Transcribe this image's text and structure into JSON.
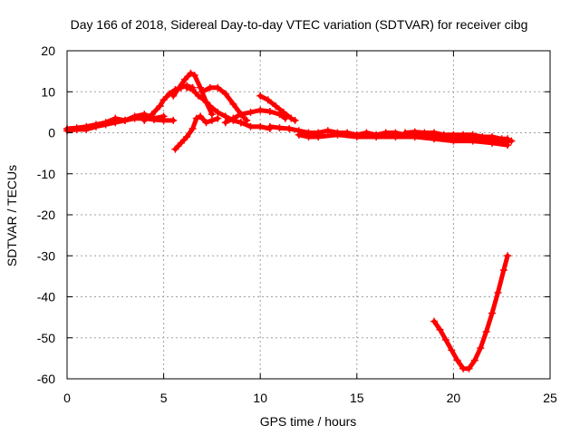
{
  "chart_data": {
    "type": "scatter",
    "title": "Day 166 of 2018, Sidereal Day-to-day VTEC variation (SDTVAR) for receiver cibg",
    "xlabel": "GPS time / hours",
    "ylabel": "SDTVAR / TECUs",
    "xlim": [
      0,
      25
    ],
    "ylim": [
      -60,
      20
    ],
    "xticks": [
      0,
      5,
      10,
      15,
      20,
      25
    ],
    "yticks": [
      -60,
      -50,
      -40,
      -30,
      -20,
      -10,
      0,
      10,
      20
    ],
    "xtick_labels": [
      "0",
      "5",
      "10",
      "15",
      "20",
      "25"
    ],
    "ytick_labels": [
      "-60",
      "-50",
      "-40",
      "-30",
      "-20",
      "-10",
      "0",
      "10",
      "20"
    ],
    "grid": true,
    "marker_color": "#ff0000",
    "series": [
      {
        "name": "low band",
        "points": [
          [
            0.0,
            0.5
          ],
          [
            0.5,
            0.8
          ],
          [
            1.0,
            0.8
          ],
          [
            1.5,
            1.5
          ],
          [
            2.0,
            2.0
          ],
          [
            2.5,
            2.5
          ],
          [
            3.0,
            3.0
          ],
          [
            3.5,
            3.5
          ],
          [
            4.0,
            3.5
          ],
          [
            4.5,
            3.2
          ],
          [
            5.0,
            3.0
          ],
          [
            5.5,
            3.0
          ]
        ]
      },
      {
        "name": "mid band",
        "points": [
          [
            0.0,
            1.0
          ],
          [
            0.5,
            1.2
          ],
          [
            1.0,
            1.5
          ],
          [
            1.5,
            2.0
          ],
          [
            2.0,
            2.5
          ],
          [
            2.5,
            3.5
          ],
          [
            3.0,
            3.0
          ],
          [
            3.5,
            4.0
          ],
          [
            4.0,
            4.5
          ],
          [
            4.5,
            3.5
          ],
          [
            5.0,
            4.0
          ]
        ]
      },
      {
        "name": "rise A",
        "points": [
          [
            4.0,
            3.0
          ],
          [
            4.4,
            4.5
          ],
          [
            4.8,
            6.5
          ],
          [
            5.0,
            8.0
          ],
          [
            5.3,
            9.5
          ],
          [
            5.6,
            10.5
          ],
          [
            5.9,
            11.0
          ],
          [
            6.2,
            11.5
          ],
          [
            6.5,
            11.0
          ]
        ]
      },
      {
        "name": "rise B",
        "points": [
          [
            5.5,
            9.0
          ],
          [
            5.8,
            11.0
          ],
          [
            6.1,
            13.0
          ],
          [
            6.4,
            14.5
          ],
          [
            6.6,
            14.0
          ],
          [
            6.9,
            11.0
          ],
          [
            7.2,
            7.5
          ],
          [
            7.5,
            4.5
          ]
        ]
      },
      {
        "name": "mid peak",
        "points": [
          [
            6.2,
            11.0
          ],
          [
            6.5,
            10.5
          ],
          [
            6.8,
            9.0
          ],
          [
            7.1,
            8.0
          ],
          [
            7.4,
            6.5
          ],
          [
            7.8,
            5.0
          ],
          [
            8.2,
            4.0
          ],
          [
            8.6,
            3.0
          ],
          [
            9.0,
            2.5
          ]
        ]
      },
      {
        "name": "hump",
        "points": [
          [
            7.0,
            10.0
          ],
          [
            7.4,
            11.0
          ],
          [
            7.8,
            11.0
          ],
          [
            8.2,
            9.5
          ],
          [
            8.6,
            7.0
          ],
          [
            9.0,
            4.5
          ],
          [
            9.3,
            3.0
          ]
        ]
      },
      {
        "name": "dip",
        "points": [
          [
            5.6,
            -4.0
          ],
          [
            5.9,
            -2.5
          ],
          [
            6.2,
            -1.0
          ],
          [
            6.5,
            1.0
          ],
          [
            6.7,
            3.5
          ],
          [
            6.9,
            4.0
          ],
          [
            7.2,
            2.5
          ],
          [
            7.5,
            3.0
          ],
          [
            7.8,
            3.5
          ]
        ]
      },
      {
        "name": "bump",
        "points": [
          [
            8.2,
            2.5
          ],
          [
            8.6,
            3.5
          ],
          [
            9.0,
            4.5
          ],
          [
            9.5,
            5.0
          ],
          [
            10.0,
            5.5
          ],
          [
            10.5,
            5.2
          ],
          [
            11.0,
            4.5
          ],
          [
            11.3,
            3.5
          ]
        ]
      },
      {
        "name": "descent",
        "points": [
          [
            10.0,
            9.0
          ],
          [
            10.4,
            8.0
          ],
          [
            10.8,
            6.5
          ],
          [
            11.2,
            5.0
          ],
          [
            11.6,
            3.5
          ],
          [
            11.8,
            3.0
          ]
        ]
      },
      {
        "name": "short tail",
        "points": [
          [
            9.0,
            2.5
          ],
          [
            9.5,
            1.5
          ],
          [
            10.0,
            1.5
          ],
          [
            10.5,
            1.0
          ]
        ]
      },
      {
        "name": "flat band",
        "points": [
          [
            10.5,
            1.5
          ],
          [
            11.0,
            1.2
          ],
          [
            11.5,
            1.0
          ],
          [
            12.0,
            0.5
          ],
          [
            12.5,
            0.0
          ],
          [
            13.0,
            0.0
          ],
          [
            13.5,
            0.5
          ],
          [
            14.0,
            0.0
          ],
          [
            14.5,
            0.0
          ],
          [
            15.0,
            -0.5
          ],
          [
            15.5,
            0.0
          ],
          [
            16.0,
            -0.5
          ],
          [
            16.5,
            0.0
          ],
          [
            17.0,
            0.0
          ],
          [
            17.5,
            -0.5
          ],
          [
            18.0,
            -0.5
          ],
          [
            18.5,
            -0.5
          ],
          [
            19.0,
            -0.5
          ],
          [
            19.5,
            -1.0
          ],
          [
            20.0,
            -1.0
          ],
          [
            20.5,
            -1.0
          ],
          [
            21.0,
            -1.5
          ],
          [
            21.5,
            -1.5
          ],
          [
            22.0,
            -1.5
          ],
          [
            22.5,
            -2.0
          ],
          [
            23.0,
            -2.0
          ]
        ]
      },
      {
        "name": "flat band low",
        "points": [
          [
            12.0,
            -0.5
          ],
          [
            12.5,
            -1.0
          ],
          [
            13.0,
            -1.0
          ],
          [
            14.0,
            -0.5
          ],
          [
            15.0,
            -1.0
          ],
          [
            16.0,
            -1.0
          ],
          [
            17.0,
            -1.0
          ],
          [
            18.0,
            -1.0
          ],
          [
            19.0,
            -1.5
          ],
          [
            20.0,
            -2.0
          ],
          [
            21.0,
            -2.0
          ],
          [
            22.0,
            -2.5
          ],
          [
            22.8,
            -3.0
          ]
        ]
      },
      {
        "name": "flat band high",
        "points": [
          [
            17.5,
            0.0
          ],
          [
            18.0,
            0.2
          ],
          [
            18.5,
            0.0
          ],
          [
            19.0,
            0.0
          ],
          [
            19.5,
            -0.5
          ],
          [
            20.0,
            -0.5
          ],
          [
            20.5,
            -0.5
          ],
          [
            21.0,
            -0.5
          ],
          [
            21.5,
            -1.0
          ],
          [
            22.0,
            -1.0
          ],
          [
            22.5,
            -1.5
          ],
          [
            22.8,
            -1.5
          ]
        ]
      },
      {
        "name": "V-curve",
        "points": [
          [
            19.0,
            -46.0
          ],
          [
            19.3,
            -48.0
          ],
          [
            19.6,
            -50.5
          ],
          [
            19.9,
            -53.0
          ],
          [
            20.2,
            -55.5
          ],
          [
            20.5,
            -57.5
          ],
          [
            20.8,
            -57.5
          ],
          [
            21.1,
            -55.5
          ],
          [
            21.4,
            -52.5
          ],
          [
            21.7,
            -48.5
          ],
          [
            22.0,
            -44.0
          ],
          [
            22.3,
            -39.0
          ],
          [
            22.6,
            -33.5
          ],
          [
            22.8,
            -30.0
          ]
        ]
      }
    ]
  }
}
